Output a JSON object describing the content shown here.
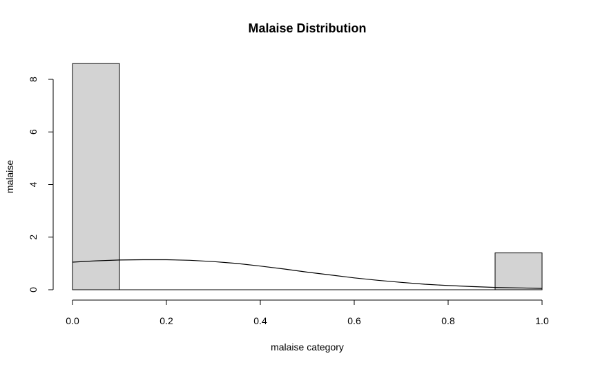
{
  "chart_data": {
    "type": "bar",
    "subtype": "histogram-with-density",
    "title": "Malaise Distribution",
    "xlabel": "malaise category",
    "ylabel": "malaise",
    "xlim": [
      0,
      1
    ],
    "ylim": [
      0,
      8
    ],
    "x_ticks": [
      "0.0",
      "0.2",
      "0.4",
      "0.6",
      "0.8",
      "1.0"
    ],
    "y_ticks": [
      "0",
      "2",
      "4",
      "6",
      "8"
    ],
    "bars": [
      {
        "x0": 0.0,
        "x1": 0.1,
        "value": 8.6
      },
      {
        "x0": 0.9,
        "x1": 1.0,
        "value": 1.4
      }
    ],
    "density_curve": {
      "x": [
        0.0,
        0.05,
        0.1,
        0.15,
        0.2,
        0.25,
        0.3,
        0.35,
        0.4,
        0.45,
        0.5,
        0.55,
        0.6,
        0.65,
        0.7,
        0.75,
        0.8,
        0.85,
        0.9,
        0.95,
        1.0
      ],
      "y": [
        1.05,
        1.1,
        1.13,
        1.14,
        1.14,
        1.12,
        1.07,
        1.0,
        0.9,
        0.79,
        0.67,
        0.56,
        0.45,
        0.36,
        0.28,
        0.21,
        0.16,
        0.12,
        0.09,
        0.07,
        0.05
      ]
    },
    "bar_fill": "#d3d3d3",
    "line_color": "#000000",
    "grid": false,
    "legend": "none"
  }
}
